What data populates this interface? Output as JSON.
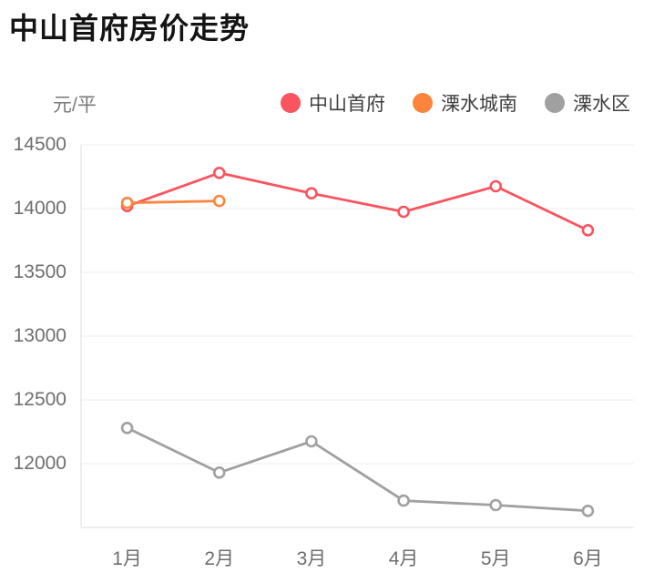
{
  "title": "中山首府房价走势",
  "y_axis_unit": "元/平",
  "legend": [
    {
      "name": "中山首府",
      "color": "#fa545f"
    },
    {
      "name": "溧水城南",
      "color": "#fc853e"
    },
    {
      "name": "溧水区",
      "color": "#a0a0a0"
    }
  ],
  "colors": {
    "grid_line": "#ececec",
    "axis_line": "#dcdcdc",
    "axis_text": "#6e6e6e",
    "marker_fill": "#ffffff"
  },
  "chart_data": {
    "type": "line",
    "title": "中山首府房价走势",
    "ylabel": "元/平",
    "categories": [
      "1月",
      "2月",
      "3月",
      "4月",
      "5月",
      "6月"
    ],
    "series": [
      {
        "name": "中山首府",
        "color": "#fa545f",
        "values": [
          14020,
          14280,
          14120,
          13975,
          14175,
          13830
        ]
      },
      {
        "name": "溧水城南",
        "color": "#fc853e",
        "values": [
          14045,
          14060,
          null,
          null,
          null,
          null
        ]
      },
      {
        "name": "溧水区",
        "color": "#a0a0a0",
        "values": [
          12280,
          11930,
          12175,
          11710,
          11675,
          11630
        ]
      }
    ],
    "ylim": [
      11500,
      14500
    ],
    "yticks": [
      12000,
      12500,
      13000,
      13500,
      14000,
      14500
    ],
    "grid": true,
    "legend_position": "top"
  }
}
